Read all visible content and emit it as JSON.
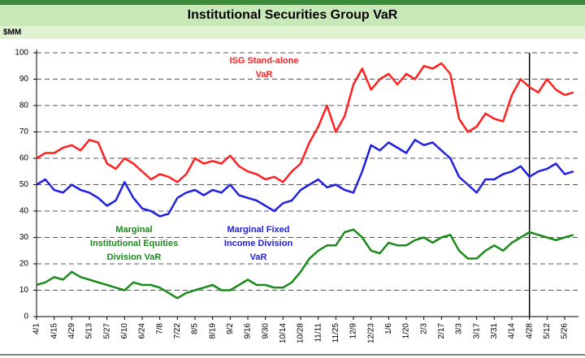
{
  "chart_data": {
    "type": "line",
    "title": "Institutional Securities Group VaR",
    "y_label": "$MM",
    "categories": [
      "4/1",
      null,
      "4/15",
      null,
      "4/29",
      null,
      "5/13",
      null,
      "5/27",
      null,
      "6/10",
      null,
      "6/24",
      null,
      "7/8",
      null,
      "7/22",
      null,
      "8/5",
      null,
      "8/19",
      null,
      "9/2",
      null,
      "9/16",
      null,
      "9/30",
      null,
      "10/14",
      null,
      "10/28",
      null,
      "11/11",
      null,
      "11/25",
      null,
      "12/9",
      null,
      "12/23",
      null,
      "1/6",
      null,
      "1/20",
      null,
      "2/3",
      null,
      "2/17",
      null,
      "3/3",
      null,
      "3/17",
      null,
      "3/31",
      null,
      "4/14",
      null,
      "4/28",
      null,
      "5/12",
      null,
      "5/26",
      null
    ],
    "series": [
      {
        "name": [
          "ISG Stand-alone",
          "VaR"
        ],
        "color": "#ff2020",
        "values": [
          60,
          62,
          62,
          64,
          65,
          63,
          67,
          66,
          58,
          56,
          60,
          58,
          55,
          52,
          54,
          53,
          51,
          54,
          60,
          58,
          59,
          58,
          61,
          57,
          55,
          54,
          52,
          53,
          51,
          55,
          58,
          66,
          72,
          80,
          70,
          76,
          88,
          94,
          86,
          90,
          92,
          88,
          92,
          90,
          95,
          94,
          96,
          92,
          75,
          70,
          72,
          77,
          75,
          74,
          84,
          90,
          87,
          85,
          90,
          86,
          84,
          85
        ]
      },
      {
        "name": [
          "Marginal Fixed",
          "Income Division",
          "VaR"
        ],
        "color": "#2020e0",
        "values": [
          50,
          52,
          48,
          47,
          50,
          48,
          47,
          45,
          42,
          44,
          51,
          45,
          41,
          40,
          38,
          39,
          45,
          47,
          48,
          46,
          48,
          47,
          50,
          46,
          45,
          44,
          42,
          40,
          43,
          44,
          48,
          50,
          52,
          49,
          50,
          48,
          47,
          55,
          65,
          63,
          66,
          64,
          62,
          67,
          65,
          66,
          63,
          60,
          53,
          50,
          47,
          52,
          52,
          54,
          55,
          57,
          53,
          55,
          56,
          58,
          54,
          55
        ]
      },
      {
        "name": [
          "Marginal",
          "Institutional Equities",
          "Division VaR"
        ],
        "color": "#1a8a1a",
        "values": [
          12,
          13,
          15,
          14,
          17,
          15,
          14,
          13,
          12,
          11,
          10,
          13,
          12,
          12,
          11,
          9,
          7,
          9,
          10,
          11,
          12,
          10,
          10,
          12,
          14,
          12,
          12,
          11,
          11,
          13,
          17,
          22,
          25,
          27,
          27,
          32,
          33,
          30,
          25,
          24,
          28,
          27,
          27,
          29,
          30,
          28,
          30,
          31,
          25,
          22,
          22,
          25,
          27,
          25,
          28,
          30,
          32,
          31,
          30,
          29,
          30,
          31
        ]
      }
    ],
    "ylim": [
      0,
      100
    ],
    "yticks": [
      0,
      10,
      20,
      30,
      40,
      50,
      60,
      70,
      80,
      90,
      100
    ],
    "grid": true
  }
}
